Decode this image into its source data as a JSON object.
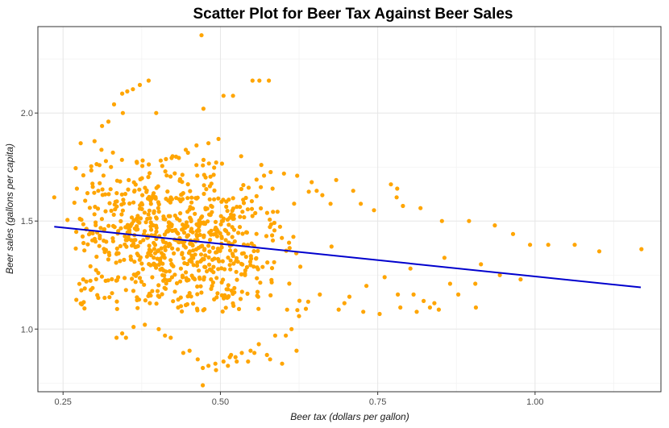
{
  "chart_data": {
    "type": "scatter",
    "title": "Scatter Plot for Beer Tax Against Beer Sales",
    "xlabel": "Beer tax (dollars per gallon)",
    "ylabel": "Beer sales (gallons per capita)",
    "xlim": [
      0.21,
      1.2
    ],
    "ylim": [
      0.71,
      2.4
    ],
    "x_ticks": [
      0.25,
      0.5,
      0.75,
      1.0
    ],
    "x_tick_labels": [
      "0.25",
      "0.50",
      "0.75",
      "1.00"
    ],
    "y_ticks": [
      1.0,
      1.5,
      2.0
    ],
    "y_tick_labels": [
      "1.0",
      "1.5",
      "2.0"
    ],
    "grid": true,
    "legend": "none",
    "point_color": "#FFA500",
    "line_color": "#0000CD",
    "regression_line": {
      "x": [
        0.236,
        1.168
      ],
      "y": [
        1.474,
        1.193
      ]
    },
    "series": [
      {
        "x": [
          0.236,
          0.257,
          0.268,
          0.278,
          0.3,
          0.312,
          0.331,
          0.322,
          0.344,
          0.352,
          0.361,
          0.372,
          0.386,
          0.398,
          0.47,
          0.473,
          0.505,
          0.52,
          0.551,
          0.562,
          0.577,
          0.345,
          0.311,
          0.272,
          0.424,
          0.445,
          0.462,
          0.481,
          0.497,
          0.533,
          0.565,
          0.583,
          0.601,
          0.622,
          0.645,
          0.653,
          0.662,
          0.675,
          0.684,
          0.711,
          0.723,
          0.744,
          0.771,
          0.781,
          0.79,
          0.78,
          0.818,
          0.852,
          0.895,
          0.936,
          0.965,
          0.992,
          1.021,
          1.063,
          1.102,
          1.169,
          0.977,
          0.944,
          0.914,
          0.856,
          0.802,
          0.761,
          0.732,
          0.705,
          0.782,
          0.807,
          0.823,
          0.84,
          0.865,
          0.878,
          0.906,
          0.847,
          0.786,
          0.812,
          0.833,
          0.905,
          0.753,
          0.727,
          0.697,
          0.688,
          0.625,
          0.613,
          0.658,
          0.587,
          0.604,
          0.561,
          0.548,
          0.534,
          0.524,
          0.517,
          0.505,
          0.492,
          0.481,
          0.472,
          0.464,
          0.451,
          0.441,
          0.421,
          0.412,
          0.402,
          0.38,
          0.362,
          0.35,
          0.344,
          0.335,
          0.472,
          0.493,
          0.512,
          0.526,
          0.554,
          0.579,
          0.598,
          0.621,
          0.574,
          0.544,
          0.515,
          0.282,
          0.297,
          0.287,
          0.306,
          0.271
        ],
        "y": [
          1.61,
          1.505,
          1.585,
          1.86,
          1.87,
          1.94,
          2.04,
          1.96,
          2.09,
          2.1,
          2.11,
          2.13,
          2.15,
          2.0,
          2.36,
          2.02,
          2.08,
          2.08,
          2.15,
          2.15,
          2.15,
          2.0,
          1.83,
          1.65,
          1.8,
          1.83,
          1.85,
          1.86,
          1.88,
          1.8,
          1.76,
          1.65,
          1.72,
          1.71,
          1.68,
          1.64,
          1.62,
          1.58,
          1.69,
          1.64,
          1.58,
          1.55,
          1.67,
          1.65,
          1.57,
          1.61,
          1.56,
          1.5,
          1.5,
          1.48,
          1.44,
          1.39,
          1.39,
          1.39,
          1.36,
          1.37,
          1.23,
          1.25,
          1.3,
          1.33,
          1.28,
          1.24,
          1.2,
          1.15,
          1.16,
          1.16,
          1.13,
          1.12,
          1.21,
          1.16,
          1.1,
          1.09,
          1.1,
          1.08,
          1.1,
          1.21,
          1.07,
          1.08,
          1.12,
          1.09,
          1.06,
          1.0,
          1.16,
          0.97,
          0.97,
          0.93,
          0.9,
          0.89,
          0.87,
          0.88,
          0.85,
          0.84,
          0.83,
          0.82,
          0.86,
          0.9,
          0.89,
          0.96,
          0.97,
          1.0,
          1.02,
          1.01,
          0.96,
          0.98,
          0.96,
          0.74,
          0.81,
          0.83,
          0.85,
          0.89,
          0.86,
          0.84,
          0.9,
          0.88,
          0.85,
          0.87,
          1.23,
          1.19,
          1.22,
          1.26,
          1.45
        ]
      }
    ]
  }
}
